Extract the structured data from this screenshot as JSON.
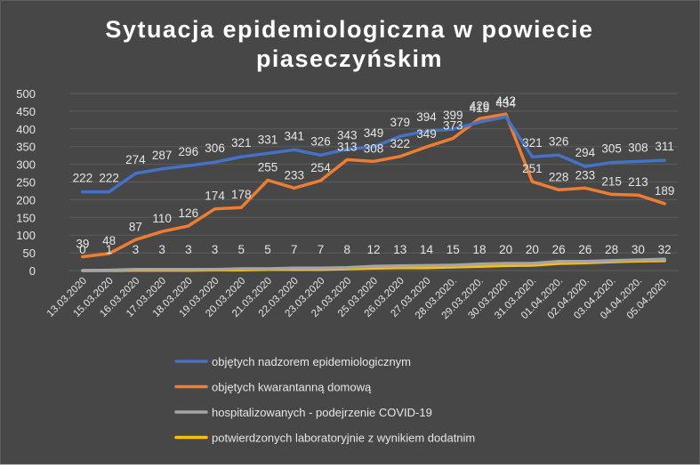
{
  "chart_data": {
    "type": "line",
    "title_lines": [
      "Sytuacja epidemiologiczna w powiecie",
      "piaseczyńskim"
    ],
    "xlabel": "",
    "ylabel": "",
    "ylim": [
      0,
      500
    ],
    "y_ticks": [
      0,
      50,
      100,
      150,
      200,
      250,
      300,
      350,
      400,
      450,
      500
    ],
    "grid": true,
    "legend_position": "bottom",
    "background": "#474747",
    "categories": [
      "13.03.2020",
      "15.03.2020",
      "16.03.2020",
      "17.03.2020",
      "18.03.2020",
      "19.03.2020",
      "20.03.2020",
      "21.03.2020",
      "22.03.2020",
      "23.03.2020",
      "24.03.2020",
      "25.03.2020",
      "26.03.2020",
      "27.03.2020",
      "28.03.2020.",
      "29.03.2020.",
      "30.03.2020.",
      "31.03.2020.",
      "01.04.2020.",
      "02.04.2020.",
      "03.04.2020.",
      "04.04.2020.",
      "05.04.2020."
    ],
    "series": [
      {
        "name": "objętych nadzorem epidemiologicznym",
        "color": "#4472C4",
        "values": [
          222,
          222,
          274,
          287,
          296,
          306,
          321,
          331,
          341,
          326,
          343,
          349,
          379,
          394,
          399,
          419,
          434,
          321,
          326,
          294,
          305,
          308,
          311
        ]
      },
      {
        "name": "objętych kwarantanną domową",
        "color": "#ED7D31",
        "values": [
          39,
          48,
          87,
          110,
          126,
          174,
          178,
          255,
          233,
          254,
          313,
          308,
          322,
          349,
          373,
          429,
          442,
          251,
          228,
          233,
          215,
          213,
          189
        ]
      },
      {
        "name": "hospitalizowanych - podejrzenie COVID-19",
        "color": "#A5A5A5",
        "values": [
          0,
          1,
          3,
          3,
          3,
          3,
          5,
          5,
          7,
          7,
          8,
          12,
          13,
          14,
          15,
          18,
          20,
          20,
          26,
          26,
          28,
          30,
          32
        ]
      },
      {
        "name": "potwierdzonych laboratoryjnie z wynikiem dodatnim",
        "color": "#FFC000",
        "values": [
          0,
          0,
          1,
          1,
          1,
          2,
          2,
          3,
          3,
          3,
          5,
          7,
          8,
          8,
          10,
          12,
          14,
          15,
          20,
          22,
          25,
          27,
          28
        ]
      }
    ],
    "data_labels": {
      "objętych nadzorem epidemiologicznym": [
        222,
        222,
        274,
        287,
        296,
        306,
        321,
        331,
        341,
        326,
        343,
        349,
        379,
        394,
        399,
        419,
        434,
        321,
        326,
        294,
        305,
        308,
        311
      ],
      "objętych kwarantanną domową": [
        39,
        48,
        87,
        110,
        126,
        174,
        178,
        255,
        233,
        254,
        313,
        308,
        322,
        349,
        373,
        429,
        442,
        251,
        228,
        233,
        215,
        213,
        189
      ],
      "hospitalizowanych - podejrzenie COVID-19": [
        0,
        1,
        3,
        3,
        3,
        3,
        5,
        5,
        7,
        7,
        8,
        12,
        13,
        14,
        15,
        18,
        20,
        20,
        26,
        26,
        28,
        30,
        32
      ]
    }
  }
}
